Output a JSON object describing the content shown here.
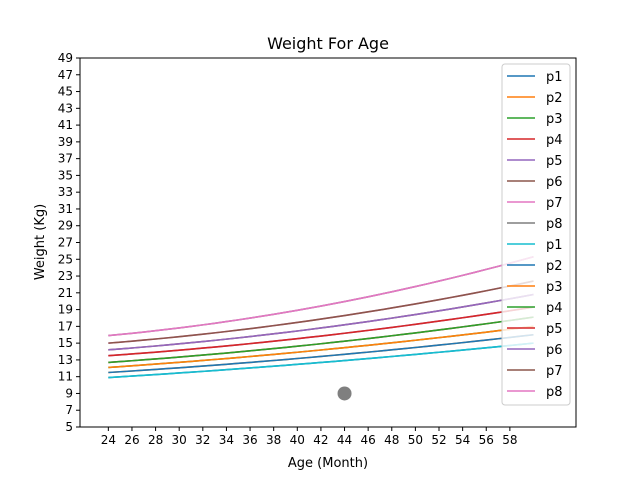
{
  "chart_data": {
    "type": "line",
    "title": "Weight For Age",
    "xlabel": "Age (Month)",
    "ylabel": "Weight (Kg)",
    "xlim": [
      21.6,
      63.6
    ],
    "ylim": [
      5,
      49
    ],
    "xticks": [
      24,
      26,
      28,
      30,
      32,
      34,
      36,
      38,
      40,
      42,
      44,
      46,
      48,
      50,
      52,
      54,
      56,
      58
    ],
    "yticks": [
      5,
      7,
      9,
      11,
      13,
      15,
      17,
      19,
      21,
      23,
      25,
      27,
      29,
      31,
      33,
      35,
      37,
      39,
      41,
      43,
      45,
      47,
      49
    ],
    "grid": false,
    "legend_position": "top-right",
    "x": [
      24,
      60
    ],
    "series": [
      {
        "name": "p1",
        "color": "#1f77b4",
        "values": [
          10.9,
          15.0
        ],
        "curve": 0.25
      },
      {
        "name": "p2",
        "color": "#ff7f0e",
        "values": [
          11.5,
          16.0
        ],
        "curve": 0.3
      },
      {
        "name": "p3",
        "color": "#2ca02c",
        "values": [
          12.1,
          17.0
        ],
        "curve": 0.3
      },
      {
        "name": "p4",
        "color": "#d62728",
        "values": [
          12.7,
          18.1
        ],
        "curve": 0.35
      },
      {
        "name": "p5",
        "color": "#9467bd",
        "values": [
          13.5,
          19.3
        ],
        "curve": 0.38
      },
      {
        "name": "p6",
        "color": "#8c564b",
        "values": [
          14.2,
          20.8
        ],
        "curve": 0.42
      },
      {
        "name": "p7",
        "color": "#e377c2",
        "values": [
          15.0,
          22.4
        ],
        "curve": 0.45
      },
      {
        "name": "p8",
        "color": "#7f7f7f",
        "values": [
          15.9,
          25.3
        ],
        "curve": 0.5
      },
      {
        "name": "p1",
        "color": "#17becf",
        "values": [
          10.9,
          15.0
        ],
        "curve": 0.25
      },
      {
        "name": "p2",
        "color": "#1f77b4",
        "values": [
          11.5,
          16.0
        ],
        "curve": 0.3
      },
      {
        "name": "p3",
        "color": "#ff7f0e",
        "values": [
          12.1,
          17.0
        ],
        "curve": 0.3
      },
      {
        "name": "p4",
        "color": "#2ca02c",
        "values": [
          12.7,
          18.1
        ],
        "curve": 0.35
      },
      {
        "name": "p5",
        "color": "#d62728",
        "values": [
          13.5,
          19.3
        ],
        "curve": 0.38
      },
      {
        "name": "p6",
        "color": "#9467bd",
        "values": [
          14.2,
          20.8
        ],
        "curve": 0.42
      },
      {
        "name": "p7",
        "color": "#8c564b",
        "values": [
          15.0,
          22.4
        ],
        "curve": 0.45
      },
      {
        "name": "p8",
        "color": "#e377c2",
        "values": [
          15.9,
          25.3
        ],
        "curve": 0.5
      }
    ],
    "points": [
      {
        "x": 44,
        "y": 9,
        "color": "#7f7f7f"
      }
    ]
  }
}
